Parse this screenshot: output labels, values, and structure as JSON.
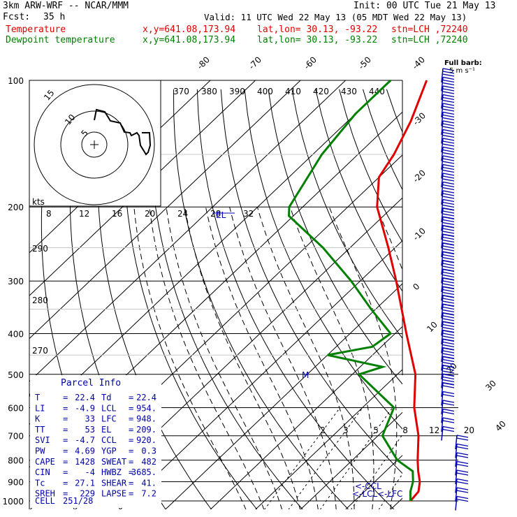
{
  "header": {
    "model": "3km ARW-WRF -- NCAR/MMM",
    "init": "Init: 00 UTC Tue 21 May 13",
    "fcst_label": "Fcst:",
    "fcst_value": "35 h",
    "valid": "Valid: 11 UTC Wed 22 May 13 (05 MDT Wed 22 May 13)",
    "temp_label": "Temperature",
    "dew_label": "Dewpoint temperature",
    "loc_xy": "x,y=641.08,173.94",
    "loc_latlon": "lat,lon= 30.13, -93.22",
    "loc_stn": "stn=LCH ,72240"
  },
  "colors": {
    "temperature": "#e00000",
    "dewpoint": "#008000",
    "parcel_text": "#0000aa",
    "barbs": "#0000aa"
  },
  "barb_key": {
    "line1": "Full barb:",
    "line2": "5 m s⁻¹"
  },
  "hodograph": {
    "units": "kts",
    "ring_labels": [
      "5",
      "10",
      "15"
    ],
    "speed_ticks": [
      "8",
      "12",
      "16",
      "20",
      "24",
      "28",
      "32"
    ],
    "theta_labels": [
      "370",
      "380",
      "390",
      "400",
      "410",
      "420",
      "430",
      "440"
    ],
    "el_label": "EL"
  },
  "pressure_levels": [
    "100",
    "200",
    "300",
    "400",
    "500",
    "600",
    "700",
    "800",
    "900",
    "1000"
  ],
  "isotherm_labels": [
    "-80",
    "-70",
    "-60",
    "-50",
    "-40",
    "-30",
    "-20",
    "-10",
    "0",
    "10",
    "20",
    "30",
    "40"
  ],
  "dry_adiabat_labels": [
    "290",
    "280",
    "270"
  ],
  "mixing_ratio_labels": [
    "2",
    "3",
    "5",
    "8",
    "12",
    "20"
  ],
  "level_markers": {
    "M": "M",
    "ccl": "<-CCL",
    "lcl": "<-LCL",
    "lfc": "<-LFC"
  },
  "parcel_info": {
    "title": "Parcel Info",
    "rows": [
      {
        "k1": "T",
        "v1": "22.4",
        "k2": "Td",
        "v2": "22.4"
      },
      {
        "k1": "LI",
        "v1": "-4.9",
        "k2": "LCL",
        "v2": "954."
      },
      {
        "k1": "K",
        "v1": "33",
        "k2": "LFC",
        "v2": "948."
      },
      {
        "k1": "TT",
        "v1": "53",
        "k2": "EL",
        "v2": "209."
      },
      {
        "k1": "SVI",
        "v1": "-4.7",
        "k2": "CCL",
        "v2": "920."
      },
      {
        "k1": "PW",
        "v1": "4.69",
        "k2": "YGP",
        "v2": "0.3"
      },
      {
        "k1": "CAPE",
        "v1": "1428",
        "k2": "SWEAT",
        "v2": "482"
      },
      {
        "k1": "CIN",
        "v1": "-4",
        "k2": "HWBZ",
        "v2": "3685."
      },
      {
        "k1": "Tc",
        "v1": "27.1",
        "k2": "SHEAR",
        "v2": "41."
      },
      {
        "k1": "SREH",
        "v1": "229",
        "k2": "LAPSE",
        "v2": "7.2"
      }
    ],
    "cell_label": "CELL",
    "cell_value": "251/28"
  },
  "chart_data": {
    "type": "line",
    "title": "",
    "xlabel": "",
    "ylabel": "",
    "y_axis": "pressure (hPa), log scale, inverted",
    "ylim": [
      1000,
      100
    ],
    "x_axis": "skewed temperature (°C)",
    "series": [
      {
        "name": "Temperature",
        "pressure": [
          1000,
          950,
          900,
          850,
          800,
          700,
          600,
          500,
          400,
          300,
          250,
          200,
          170,
          150,
          125,
          100
        ],
        "values": [
          22.4,
          22.0,
          20.0,
          17.2,
          14.5,
          9.0,
          1.5,
          -6.0,
          -17.5,
          -32.0,
          -41.5,
          -53.5,
          -60.0,
          -62.0,
          -66.0,
          -72.0
        ]
      },
      {
        "name": "Dewpoint temperature",
        "pressure": [
          1000,
          950,
          900,
          850,
          800,
          700,
          600,
          500,
          480,
          450,
          430,
          400,
          350,
          300,
          250,
          210,
          200,
          150,
          120,
          100
        ],
        "values": [
          22.4,
          20.2,
          18.5,
          16.0,
          10.0,
          1.0,
          -3.0,
          -18.5,
          -15.0,
          -30.0,
          -22.0,
          -21.0,
          -31.0,
          -42.0,
          -56.0,
          -71.0,
          -73.0,
          -78.0,
          -80.0,
          -80.0
        ]
      }
    ]
  }
}
